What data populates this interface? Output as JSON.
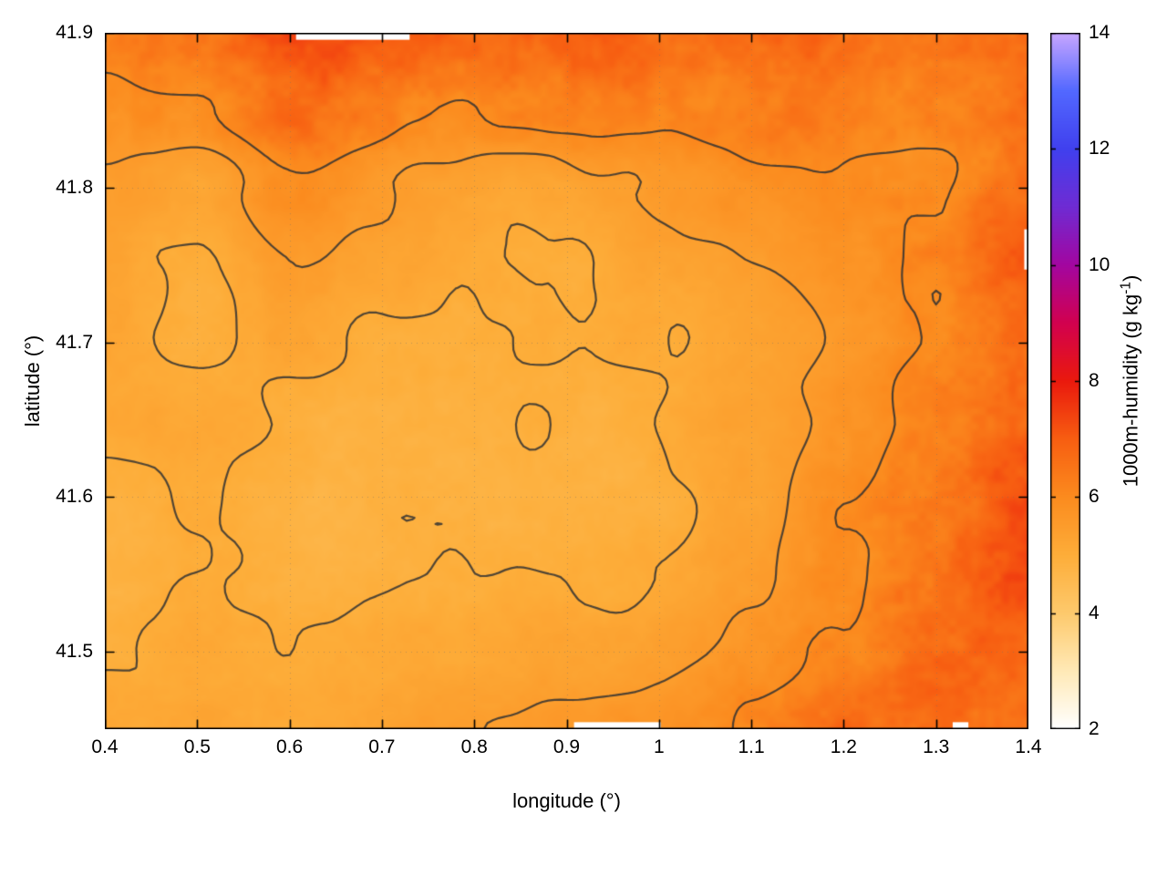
{
  "figure": {
    "background": "#ffffff"
  },
  "chart_data": {
    "type": "heatmap",
    "title": "",
    "xlabel": "longitude (°)",
    "ylabel": "latitude (°)",
    "colorbar_label": "1000m-humidity (g kg⁻¹)",
    "colorbar_label_parts": {
      "prefix": "1000m-humidity (g kg",
      "sup": "-1",
      "suffix": ")"
    },
    "xlim": [
      0.4,
      1.4
    ],
    "ylim": [
      41.45,
      41.9
    ],
    "xticks": {
      "values": [
        0.4,
        0.5,
        0.6,
        0.7,
        0.8,
        0.9,
        1.0,
        1.1,
        1.2,
        1.3,
        1.4
      ],
      "labels": [
        "0.4",
        "0.5",
        "0.6",
        "0.7",
        "0.8",
        "0.9",
        "1",
        "1.1",
        "1.2",
        "1.3",
        "1.4"
      ]
    },
    "yticks": {
      "values": [
        41.5,
        41.6,
        41.7,
        41.8,
        41.9
      ],
      "labels": [
        "41.5",
        "41.6",
        "41.7",
        "41.8",
        "41.9"
      ]
    },
    "colorbar": {
      "min": 2,
      "max": 14,
      "tick_values": [
        2,
        4,
        6,
        8,
        10,
        12,
        14
      ],
      "tick_labels": [
        "2",
        "4",
        "6",
        "8",
        "10",
        "12",
        "14"
      ]
    },
    "palette_stops": [
      [
        2,
        "#ffffff"
      ],
      [
        3,
        "#ffe9b6"
      ],
      [
        4,
        "#fdc96c"
      ],
      [
        5,
        "#fdad39"
      ],
      [
        6,
        "#fb8b1e"
      ],
      [
        7,
        "#f75e11"
      ],
      [
        8,
        "#ea190d"
      ],
      [
        9,
        "#d2014f"
      ],
      [
        10,
        "#a306a0"
      ],
      [
        11,
        "#6f2bd3"
      ],
      [
        12,
        "#4040ee"
      ],
      [
        13,
        "#5268ff"
      ],
      [
        14,
        "#c7a6ff"
      ]
    ],
    "contour_levels": [
      5.0,
      5.5,
      6.0
    ],
    "contour_color": "#323232",
    "grid_lines": {
      "show": true,
      "style": "dotted"
    },
    "grid": {
      "lon": [
        0.4,
        0.5,
        0.6,
        0.7,
        0.8,
        0.9,
        1.0,
        1.1,
        1.2,
        1.3,
        1.4
      ],
      "lat": [
        41.9,
        41.85,
        41.8,
        41.75,
        41.7,
        41.65,
        41.6,
        41.55,
        41.5,
        41.45
      ],
      "values": [
        [
          6.3,
          6.6,
          7.1,
          6.9,
          6.6,
          6.9,
          6.7,
          6.9,
          6.6,
          6.7,
          7.0
        ],
        [
          5.9,
          6.1,
          6.6,
          6.3,
          6.1,
          6.2,
          6.1,
          6.3,
          6.2,
          6.3,
          6.8
        ],
        [
          5.5,
          5.3,
          5.9,
          5.5,
          5.3,
          5.3,
          5.5,
          5.7,
          5.9,
          6.1,
          6.6
        ],
        [
          5.3,
          5.0,
          5.5,
          5.2,
          5.1,
          5.0,
          5.2,
          5.4,
          5.7,
          6.1,
          6.9
        ],
        [
          5.2,
          4.95,
          5.3,
          5.0,
          4.9,
          4.95,
          5.1,
          5.3,
          5.6,
          6.0,
          6.7
        ],
        [
          5.1,
          5.1,
          5.0,
          4.85,
          4.8,
          4.9,
          5.05,
          5.3,
          5.7,
          6.2,
          6.9
        ],
        [
          4.95,
          5.05,
          4.9,
          4.8,
          4.75,
          4.85,
          5.0,
          5.35,
          5.9,
          6.5,
          7.2
        ],
        [
          4.9,
          5.0,
          4.9,
          4.8,
          4.85,
          5.0,
          5.2,
          5.5,
          6.0,
          6.7,
          7.3
        ],
        [
          5.0,
          5.1,
          5.0,
          5.0,
          5.1,
          5.25,
          5.45,
          5.8,
          6.2,
          6.9,
          7.1
        ],
        [
          5.1,
          5.2,
          5.15,
          5.25,
          5.4,
          5.5,
          5.6,
          6.0,
          6.5,
          6.7,
          6.9
        ]
      ]
    },
    "gaps": [
      {
        "lon": [
          0.607,
          0.73
        ],
        "lat": [
          41.8955,
          41.9
        ]
      },
      {
        "lon": [
          0.908,
          1.002
        ],
        "lat": [
          41.45,
          41.4545
        ]
      },
      {
        "lon": [
          1.318,
          1.335
        ],
        "lat": [
          41.45,
          41.4545
        ]
      },
      {
        "lon": [
          1.3955,
          1.4
        ],
        "lat": [
          41.747,
          41.773
        ]
      }
    ]
  }
}
